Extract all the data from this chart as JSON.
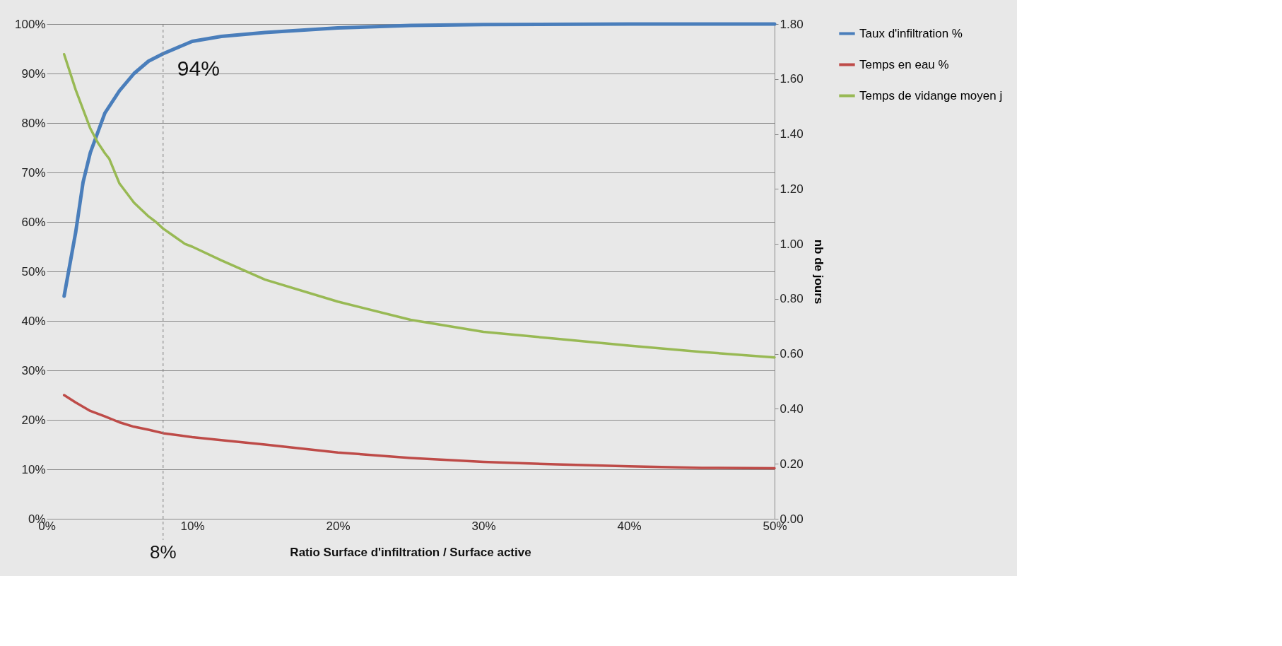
{
  "chart_data": {
    "type": "line",
    "xlabel": "Ratio Surface d'infiltration  / Surface active",
    "y2label": "nb de jours",
    "xlim": [
      0,
      50
    ],
    "xticks": [
      {
        "value": 0,
        "label": "0%"
      },
      {
        "value": 10,
        "label": "10%"
      },
      {
        "value": 20,
        "label": "20%"
      },
      {
        "value": 30,
        "label": "30%"
      },
      {
        "value": 40,
        "label": "40%"
      },
      {
        "value": 50,
        "label": "50%"
      }
    ],
    "ylim": [
      0,
      100
    ],
    "yticks": [
      {
        "value": 0,
        "label": "0%"
      },
      {
        "value": 10,
        "label": "10%"
      },
      {
        "value": 20,
        "label": "20%"
      },
      {
        "value": 30,
        "label": "30%"
      },
      {
        "value": 40,
        "label": "40%"
      },
      {
        "value": 50,
        "label": "50%"
      },
      {
        "value": 60,
        "label": "60%"
      },
      {
        "value": 70,
        "label": "70%"
      },
      {
        "value": 80,
        "label": "80%"
      },
      {
        "value": 90,
        "label": "90%"
      },
      {
        "value": 100,
        "label": "100%"
      }
    ],
    "y2lim": [
      0,
      1.8
    ],
    "y2ticks": [
      {
        "value": 0,
        "label": "0.00"
      },
      {
        "value": 0.2,
        "label": "0.20"
      },
      {
        "value": 0.4,
        "label": "0.40"
      },
      {
        "value": 0.6,
        "label": "0.60"
      },
      {
        "value": 0.8,
        "label": "0.80"
      },
      {
        "value": 1.0,
        "label": "1.00"
      },
      {
        "value": 1.2,
        "label": "1.20"
      },
      {
        "value": 1.4,
        "label": "1.40"
      },
      {
        "value": 1.6,
        "label": "1.60"
      },
      {
        "value": 1.8,
        "label": "1.80"
      }
    ],
    "grid": "y",
    "legend": "right",
    "line_style": "solid",
    "series": [
      {
        "name": "Taux d'infiltration %",
        "color": "#4a7ebb",
        "x": [
          1.2,
          2,
          2.5,
          3,
          4,
          5,
          6,
          7,
          8,
          10,
          12,
          15,
          20,
          25,
          30,
          40,
          50
        ],
        "values": [
          45,
          58,
          68,
          74,
          82,
          86.5,
          90,
          92.5,
          94,
          96.5,
          97.5,
          98.3,
          99.2,
          99.7,
          99.9,
          100,
          100
        ]
      },
      {
        "name": "Temps en eau %",
        "color": "#be4b48",
        "x": [
          1.2,
          2,
          3,
          4,
          5,
          6,
          7,
          8,
          10,
          12,
          15,
          20,
          25,
          30,
          35,
          40,
          45,
          50
        ],
        "values": [
          25,
          23.5,
          21.8,
          20.7,
          19.5,
          18.6,
          18,
          17.3,
          16.5,
          15.9,
          15,
          13.4,
          12.3,
          11.5,
          11,
          10.6,
          10.3,
          10.2
        ]
      },
      {
        "name": "Temps de vidange moyen j",
        "color": "#98b954",
        "axis": "y2",
        "x": [
          1.2,
          2,
          3,
          3.5,
          4,
          4.3,
          5,
          6,
          7,
          7.5,
          8,
          8.7,
          9.5,
          10,
          12,
          15,
          20,
          25,
          30,
          35,
          40,
          45,
          50
        ],
        "values": [
          1.69,
          1.56,
          1.42,
          1.37,
          1.33,
          1.31,
          1.22,
          1.15,
          1.1,
          1.08,
          1.056,
          1.03,
          1.0,
          0.99,
          0.94,
          0.87,
          0.79,
          0.724,
          0.68,
          0.655,
          0.63,
          0.607,
          0.587
        ]
      }
    ],
    "ref_lines": [
      {
        "axis": "x",
        "value": 8,
        "label": "8%",
        "color": "#7f7f7f",
        "line_style": "dashed"
      }
    ],
    "annotations": [
      {
        "text": "94%",
        "x": 8,
        "y": 94
      }
    ]
  }
}
